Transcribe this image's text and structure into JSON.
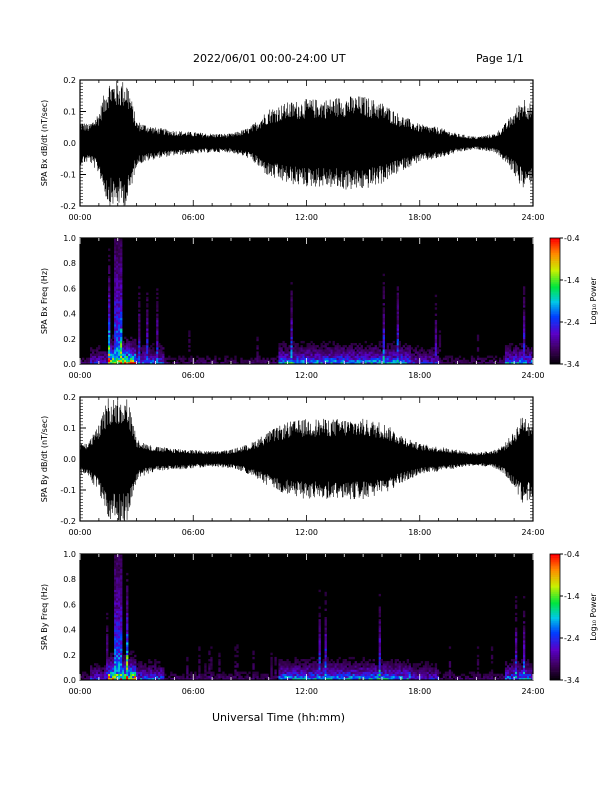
{
  "header": {
    "title": "2022/06/01  00:00-24:00 UT",
    "page": "Page 1/1"
  },
  "xaxis_title": "Universal Time (hh:mm)",
  "colors": {
    "trace": "#000000",
    "spectrogram_background": "#000000"
  },
  "chart_data": [
    {
      "type": "line",
      "title": "",
      "xlabel": "",
      "ylabel": "SPA Bx dB/dt (nT/sec)",
      "x_ticks": [
        "00:00",
        "06:00",
        "12:00",
        "18:00",
        "24:00"
      ],
      "y_ticks": [
        "0.2",
        "0.1",
        "0.0",
        "-0.1",
        "-0.2"
      ],
      "xlim_hours": [
        0,
        24
      ],
      "ylim": [
        -0.2,
        0.2
      ],
      "envelope": {
        "x_hours": [
          0,
          0.5,
          1.0,
          1.5,
          2.0,
          2.5,
          3.0,
          3.5,
          4.0,
          5.0,
          6.0,
          7.0,
          8.0,
          9.0,
          10.0,
          11.0,
          12.0,
          13.0,
          14.0,
          15.0,
          16.0,
          17.0,
          18.0,
          19.0,
          20.0,
          21.0,
          22.0,
          22.5,
          23.0,
          23.5,
          24.0
        ],
        "amplitude": [
          0.07,
          0.06,
          0.1,
          0.2,
          0.2,
          0.2,
          0.07,
          0.06,
          0.05,
          0.04,
          0.035,
          0.03,
          0.03,
          0.05,
          0.11,
          0.13,
          0.14,
          0.14,
          0.15,
          0.15,
          0.13,
          0.09,
          0.06,
          0.05,
          0.03,
          0.02,
          0.03,
          0.06,
          0.1,
          0.15,
          0.12
        ]
      }
    },
    {
      "type": "heatmap",
      "title": "",
      "xlabel": "",
      "ylabel": "SPA Bx Freq (Hz)",
      "x_ticks": [
        "00:00",
        "06:00",
        "12:00",
        "18:00",
        "24:00"
      ],
      "y_ticks": [
        "1.0",
        "0.8",
        "0.6",
        "0.4",
        "0.2",
        "0.0"
      ],
      "xlim_hours": [
        0,
        24
      ],
      "ylim": [
        0,
        1.0
      ],
      "colorbar": {
        "label": "Log₁₀ Power",
        "ticks": [
          "-0.4",
          "-1.4",
          "-2.4",
          "-3.4"
        ],
        "range": [
          -3.4,
          -0.4
        ]
      }
    },
    {
      "type": "line",
      "title": "",
      "xlabel": "",
      "ylabel": "SPA By dB/dt (nT/sec)",
      "x_ticks": [
        "00:00",
        "06:00",
        "12:00",
        "18:00",
        "24:00"
      ],
      "y_ticks": [
        "0.2",
        "0.1",
        "0.0",
        "-0.1",
        "-0.2"
      ],
      "xlim_hours": [
        0,
        24
      ],
      "ylim": [
        -0.2,
        0.2
      ],
      "envelope": {
        "x_hours": [
          0,
          0.5,
          1.0,
          1.5,
          2.0,
          2.5,
          3.0,
          3.5,
          4.0,
          5.0,
          6.0,
          7.0,
          8.0,
          9.0,
          10.0,
          11.0,
          12.0,
          13.0,
          14.0,
          15.0,
          16.0,
          17.0,
          18.0,
          19.0,
          20.0,
          21.0,
          22.0,
          22.5,
          23.0,
          23.5,
          24.0
        ],
        "amplitude": [
          0.05,
          0.06,
          0.11,
          0.2,
          0.2,
          0.2,
          0.07,
          0.05,
          0.04,
          0.035,
          0.03,
          0.025,
          0.03,
          0.05,
          0.09,
          0.12,
          0.13,
          0.13,
          0.13,
          0.13,
          0.12,
          0.08,
          0.05,
          0.04,
          0.03,
          0.02,
          0.03,
          0.05,
          0.09,
          0.15,
          0.12
        ]
      }
    },
    {
      "type": "heatmap",
      "title": "",
      "xlabel": "",
      "ylabel": "SPA By Freq (Hz)",
      "x_ticks": [
        "00:00",
        "06:00",
        "12:00",
        "18:00",
        "24:00"
      ],
      "y_ticks": [
        "1.0",
        "0.8",
        "0.6",
        "0.4",
        "0.2",
        "0.0"
      ],
      "xlim_hours": [
        0,
        24
      ],
      "ylim": [
        0,
        1.0
      ],
      "colorbar": {
        "label": "Log₁₀ Power",
        "ticks": [
          "-0.4",
          "-1.4",
          "-2.4",
          "-3.4"
        ],
        "range": [
          -3.4,
          -0.4
        ]
      }
    }
  ]
}
